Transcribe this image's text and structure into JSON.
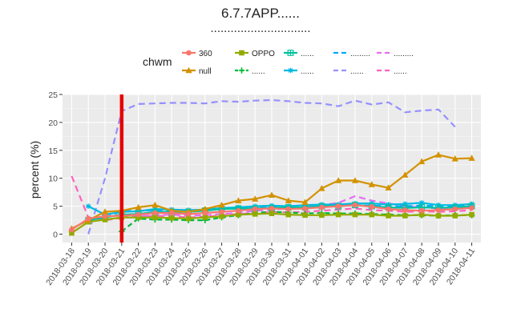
{
  "chart_data": {
    "type": "line",
    "title": "6.7.7APP......",
    "subtitle": "..............................",
    "xlabel": "",
    "ylabel": "percent (%)",
    "ylim": [
      -1.5,
      25
    ],
    "yticks": [
      0,
      5,
      10,
      15,
      20,
      25
    ],
    "grid": true,
    "legend_title": "chwm",
    "legend_position": "top",
    "categories": [
      "2018-03-18",
      "2018-03-19",
      "2018-03-20",
      "2018-03-21",
      "2018-03-22",
      "2018-03-23",
      "2018-03-24",
      "2018-03-25",
      "2018-03-26",
      "2018-03-27",
      "2018-03-28",
      "2018-03-29",
      "2018-03-30",
      "2018-03-31",
      "2018-04-01",
      "2018-04-02",
      "2018-04-03",
      "2018-04-04",
      "2018-04-05",
      "2018-04-06",
      "2018-04-07",
      "2018-04-08",
      "2018-04-09",
      "2018-04-10",
      "2018-04-11"
    ],
    "marker_line": {
      "x": "2018-03-21",
      "color": "#e60000"
    },
    "series": [
      {
        "name": "360",
        "color": "#F8766D",
        "marker": "circle",
        "dash": "",
        "values": [
          0.8,
          2.8,
          3.2,
          3.3,
          3.5,
          3.8,
          3.8,
          3.6,
          3.8,
          4.0,
          4.2,
          4.5,
          4.6,
          4.5,
          4.6,
          4.8,
          5.0,
          5.2,
          4.9,
          4.5,
          4.3,
          4.2,
          4.3,
          4.5,
          4.7
        ]
      },
      {
        "name": "null",
        "color": "#D39200",
        "marker": "triangle",
        "dash": "",
        "values": [
          1.0,
          2.5,
          4.0,
          4.2,
          4.8,
          5.2,
          4.2,
          4.0,
          4.5,
          5.2,
          6.0,
          6.3,
          7.0,
          6.0,
          5.7,
          8.2,
          9.6,
          9.6,
          8.9,
          8.3,
          10.6,
          13.0,
          14.2,
          13.5,
          13.6
        ]
      },
      {
        "name": "OPPO",
        "color": "#93AA00",
        "marker": "square",
        "dash": "",
        "values": [
          0.2,
          2.2,
          2.6,
          3.0,
          3.0,
          3.0,
          2.9,
          2.8,
          3.0,
          3.2,
          3.5,
          3.6,
          3.7,
          3.5,
          3.4,
          3.4,
          3.5,
          3.5,
          3.5,
          3.3,
          3.3,
          3.5,
          3.3,
          3.3,
          3.5
        ]
      },
      {
        "name": "......",
        "color": "#00BA38",
        "marker": "plus",
        "dash": "6,4",
        "values": [
          null,
          null,
          null,
          0.5,
          2.8,
          2.6,
          2.6,
          2.5,
          2.5,
          3.0,
          3.4,
          3.8,
          4.0,
          3.9,
          3.7,
          3.8,
          3.7,
          3.7,
          3.6,
          3.5,
          3.4,
          3.4,
          3.3,
          3.4,
          3.4
        ]
      },
      {
        "name": "......",
        "color": "#00C19F",
        "marker": "boxplus",
        "dash": "",
        "values": [
          null,
          2.5,
          3.0,
          3.5,
          3.6,
          4.0,
          4.0,
          4.0,
          4.2,
          4.5,
          4.6,
          4.6,
          4.7,
          4.8,
          4.8,
          5.0,
          5.0,
          5.2,
          5.0,
          4.8,
          4.7,
          4.8,
          4.7,
          4.8,
          5.0
        ]
      },
      {
        "name": "......",
        "color": "#00B9E3",
        "marker": "asterisk",
        "dash": "",
        "values": [
          null,
          5.0,
          3.5,
          4.0,
          4.1,
          4.5,
          4.4,
          4.3,
          4.4,
          4.7,
          4.8,
          5.0,
          5.1,
          5.0,
          5.2,
          5.3,
          5.3,
          5.5,
          5.5,
          5.3,
          5.4,
          5.6,
          5.2,
          5.2,
          5.4
        ]
      },
      {
        "name": ".........",
        "color": "#00A9FF",
        "marker": "none",
        "dash": "8,5",
        "values": [
          null,
          null,
          3.0,
          4.1,
          4.2,
          4.3,
          4.2,
          4.2,
          4.3,
          4.5,
          4.6,
          4.7,
          4.8,
          4.8,
          5.0,
          5.1,
          5.1,
          5.2,
          5.1,
          5.0,
          5.0,
          5.1,
          5.0,
          5.0,
          5.2
        ]
      },
      {
        "name": "......",
        "color": "#9590FF",
        "marker": "none",
        "dash": "8,5",
        "values": [
          null,
          0.0,
          10.0,
          22.0,
          23.3,
          23.4,
          23.5,
          23.5,
          23.4,
          23.8,
          23.7,
          23.9,
          24.0,
          23.8,
          23.5,
          23.4,
          22.9,
          23.9,
          23.2,
          23.6,
          21.8,
          22.1,
          22.3,
          19.2,
          null
        ]
      },
      {
        "name": ".........",
        "color": "#E76BF3",
        "marker": "none",
        "dash": "8,5",
        "values": [
          null,
          null,
          null,
          3.0,
          3.2,
          3.4,
          3.5,
          3.3,
          3.4,
          3.6,
          3.8,
          4.2,
          4.4,
          4.6,
          4.8,
          5.2,
          5.6,
          6.8,
          6.0,
          5.5,
          5.0,
          4.8,
          4.6,
          4.8,
          5.0
        ]
      },
      {
        "name": "......",
        "color": "#FF62BC",
        "marker": "none",
        "dash": "8,5",
        "values": [
          10.4,
          3.0,
          2.5,
          2.9,
          3.1,
          3.3,
          3.2,
          3.0,
          3.1,
          3.4,
          3.6,
          3.8,
          4.0,
          3.9,
          4.0,
          4.2,
          4.4,
          4.6,
          4.3,
          4.2,
          4.0,
          4.1,
          4.0,
          4.1,
          4.3
        ]
      }
    ]
  }
}
